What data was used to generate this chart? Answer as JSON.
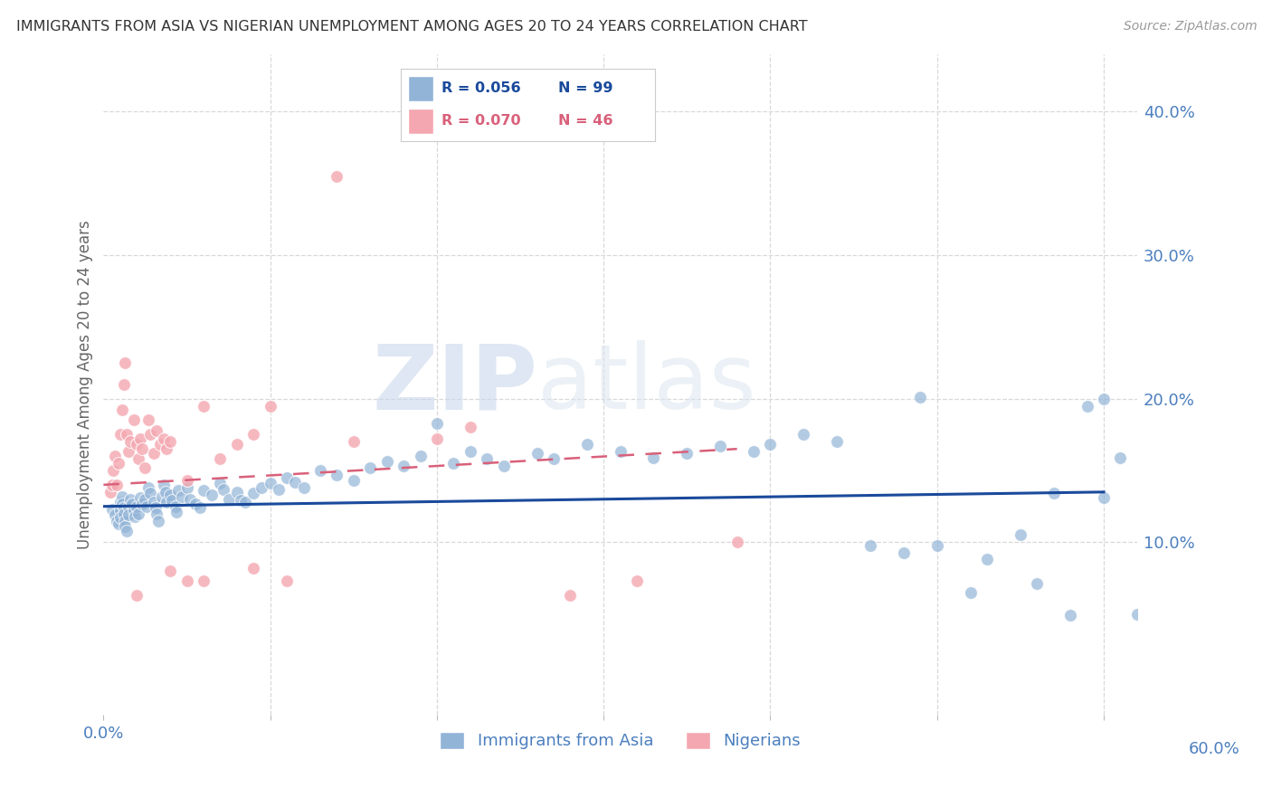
{
  "title": "IMMIGRANTS FROM ASIA VS NIGERIAN UNEMPLOYMENT AMONG AGES 20 TO 24 YEARS CORRELATION CHART",
  "source": "Source: ZipAtlas.com",
  "ylabel": "Unemployment Among Ages 20 to 24 years",
  "ytick_values": [
    0.1,
    0.2,
    0.3,
    0.4
  ],
  "xtick_values": [
    0.0,
    0.1,
    0.2,
    0.3,
    0.4,
    0.5,
    0.6
  ],
  "xlim": [
    0.0,
    0.62
  ],
  "ylim": [
    -0.02,
    0.44
  ],
  "legend_label_blue": "Immigrants from Asia",
  "legend_label_pink": "Nigerians",
  "blue_color": "#92B4D7",
  "pink_color": "#F4A7B0",
  "blue_line_color": "#1A4A9B",
  "pink_line_color": "#D9607A",
  "axis_label_color": "#4C7FBE",
  "grid_color": "#D8D8D8",
  "blue_scatter_x": [
    0.005,
    0.007,
    0.008,
    0.009,
    0.01,
    0.01,
    0.01,
    0.011,
    0.011,
    0.012,
    0.012,
    0.013,
    0.013,
    0.014,
    0.015,
    0.015,
    0.016,
    0.017,
    0.018,
    0.019,
    0.02,
    0.021,
    0.022,
    0.023,
    0.025,
    0.026,
    0.027,
    0.028,
    0.03,
    0.031,
    0.032,
    0.033,
    0.035,
    0.036,
    0.037,
    0.038,
    0.04,
    0.041,
    0.043,
    0.044,
    0.045,
    0.047,
    0.05,
    0.052,
    0.055,
    0.058,
    0.06,
    0.065,
    0.07,
    0.072,
    0.075,
    0.08,
    0.082,
    0.085,
    0.09,
    0.095,
    0.1,
    0.105,
    0.11,
    0.115,
    0.12,
    0.13,
    0.14,
    0.15,
    0.16,
    0.17,
    0.18,
    0.19,
    0.2,
    0.21,
    0.22,
    0.23,
    0.24,
    0.26,
    0.27,
    0.29,
    0.31,
    0.33,
    0.35,
    0.37,
    0.39,
    0.4,
    0.42,
    0.44,
    0.46,
    0.48,
    0.49,
    0.5,
    0.52,
    0.53,
    0.55,
    0.56,
    0.57,
    0.58,
    0.59,
    0.6,
    0.61,
    0.62,
    0.6
  ],
  "blue_scatter_y": [
    0.123,
    0.119,
    0.115,
    0.113,
    0.128,
    0.122,
    0.117,
    0.132,
    0.127,
    0.124,
    0.12,
    0.115,
    0.111,
    0.108,
    0.125,
    0.119,
    0.13,
    0.127,
    0.122,
    0.118,
    0.125,
    0.12,
    0.131,
    0.127,
    0.13,
    0.125,
    0.138,
    0.134,
    0.128,
    0.124,
    0.12,
    0.115,
    0.132,
    0.14,
    0.135,
    0.128,
    0.133,
    0.129,
    0.125,
    0.121,
    0.136,
    0.132,
    0.138,
    0.13,
    0.127,
    0.124,
    0.136,
    0.133,
    0.141,
    0.137,
    0.13,
    0.135,
    0.129,
    0.128,
    0.134,
    0.138,
    0.141,
    0.137,
    0.145,
    0.142,
    0.138,
    0.15,
    0.147,
    0.143,
    0.152,
    0.156,
    0.153,
    0.16,
    0.183,
    0.155,
    0.163,
    0.158,
    0.153,
    0.162,
    0.158,
    0.168,
    0.163,
    0.159,
    0.162,
    0.167,
    0.163,
    0.168,
    0.175,
    0.17,
    0.098,
    0.093,
    0.201,
    0.098,
    0.065,
    0.088,
    0.105,
    0.071,
    0.134,
    0.049,
    0.195,
    0.131,
    0.159,
    0.05,
    0.2
  ],
  "pink_scatter_x": [
    0.004,
    0.005,
    0.006,
    0.007,
    0.008,
    0.009,
    0.01,
    0.011,
    0.012,
    0.013,
    0.014,
    0.015,
    0.016,
    0.018,
    0.02,
    0.021,
    0.022,
    0.023,
    0.025,
    0.027,
    0.028,
    0.03,
    0.032,
    0.034,
    0.036,
    0.038,
    0.04,
    0.05,
    0.06,
    0.07,
    0.08,
    0.09,
    0.1,
    0.11,
    0.14,
    0.15,
    0.2,
    0.22,
    0.28,
    0.32,
    0.38,
    0.04,
    0.05,
    0.06,
    0.09,
    0.02
  ],
  "pink_scatter_y": [
    0.135,
    0.14,
    0.15,
    0.16,
    0.14,
    0.155,
    0.175,
    0.192,
    0.21,
    0.225,
    0.175,
    0.163,
    0.17,
    0.185,
    0.168,
    0.158,
    0.172,
    0.165,
    0.152,
    0.185,
    0.175,
    0.162,
    0.178,
    0.168,
    0.172,
    0.165,
    0.17,
    0.143,
    0.195,
    0.158,
    0.168,
    0.175,
    0.195,
    0.073,
    0.355,
    0.17,
    0.172,
    0.18,
    0.063,
    0.073,
    0.1,
    0.08,
    0.073,
    0.073,
    0.082,
    0.063
  ],
  "blue_trend_x": [
    0.0,
    0.6
  ],
  "blue_trend_y": [
    0.125,
    0.135
  ],
  "pink_trend_x": [
    0.0,
    0.38
  ],
  "pink_trend_y": [
    0.14,
    0.165
  ],
  "watermark_zip": "ZIP",
  "watermark_atlas": "atlas"
}
